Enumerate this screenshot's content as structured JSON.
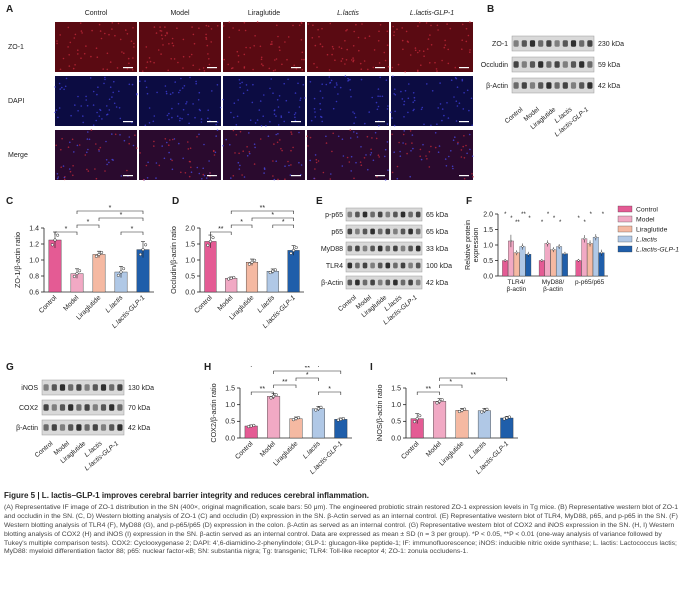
{
  "panels": {
    "A": "A",
    "B": "B",
    "C": "C",
    "D": "D",
    "E": "E",
    "F": "F",
    "G": "G",
    "H": "H",
    "I": "I"
  },
  "colors": {
    "control": "#e45b94",
    "model": "#f1a9c4",
    "liraglutide": "#f5b9a2",
    "lactis": "#b0c8e6",
    "lactis_glp1": "#1f5eaa",
    "if_red": "#5a0a12",
    "if_blue": "#0c0c42"
  },
  "groups": [
    "Control",
    "Model",
    "Liraglutide",
    "L.lactis",
    "L.lactis-GLP-1"
  ],
  "panel_a": {
    "columns": [
      "Control",
      "Model",
      "Liraglutide",
      "L.lactis",
      "L.lactis-GLP-1"
    ],
    "rows": [
      "ZO-1",
      "DAPI",
      "Merge"
    ]
  },
  "blot_b": {
    "bands": [
      {
        "name": "ZO-1",
        "kda": "230 kDa"
      },
      {
        "name": "Occludin",
        "kda": "59 kDa"
      },
      {
        "name": "β-Actin",
        "kda": "42 kDa"
      }
    ]
  },
  "blot_e": {
    "bands": [
      {
        "name": "p-p65",
        "kda": "65 kDa"
      },
      {
        "name": "p65",
        "kda": "65 kDa"
      },
      {
        "name": "MyD88",
        "kda": "33 kDa"
      },
      {
        "name": "TLR4",
        "kda": "100 kDa"
      },
      {
        "name": "β-Actin",
        "kda": "42 kDa"
      }
    ]
  },
  "blot_g": {
    "bands": [
      {
        "name": "iNOS",
        "kda": "130 kDa"
      },
      {
        "name": "COX2",
        "kda": "70 kDa"
      },
      {
        "name": "β-Actin",
        "kda": "42 kDa"
      }
    ]
  },
  "chart_data": [
    {
      "id": "C",
      "type": "bar",
      "ylabel": "ZO-1/β-actin ratio",
      "ylim": [
        0.6,
        1.4
      ],
      "yticks": [
        "0.6",
        "0.8",
        "1.0",
        "1.2",
        "1.4"
      ],
      "categories": [
        "Control",
        "Model",
        "Liraglutide",
        "L.lactis",
        "L.lactis-GLP-1"
      ],
      "values": [
        1.25,
        0.83,
        1.07,
        0.85,
        1.13
      ],
      "errors": [
        0.1,
        0.06,
        0.04,
        0.07,
        0.1
      ],
      "sig": [
        {
          "from": 0,
          "to": 1,
          "label": "*",
          "level": 0
        },
        {
          "from": 1,
          "to": 2,
          "label": "*",
          "level": 1
        },
        {
          "from": 2,
          "to": 4,
          "label": "*",
          "level": 2
        },
        {
          "from": 1,
          "to": 4,
          "label": "*",
          "level": 3
        },
        {
          "from": 3,
          "to": 4,
          "label": "*",
          "level": 0
        }
      ]
    },
    {
      "id": "D",
      "type": "bar",
      "ylabel": "Occludin/β-actin ratio",
      "ylim": [
        0,
        2.0
      ],
      "yticks": [
        "0.0",
        "0.5",
        "1.0",
        "1.5",
        "2.0"
      ],
      "categories": [
        "Control",
        "Model",
        "Liraglutide",
        "L.lactis",
        "L.lactis-GLP-1"
      ],
      "values": [
        1.58,
        0.43,
        0.93,
        0.65,
        1.3
      ],
      "errors": [
        0.2,
        0.04,
        0.1,
        0.07,
        0.15
      ],
      "sig": [
        {
          "from": 0,
          "to": 1,
          "label": "**",
          "level": 0
        },
        {
          "from": 1,
          "to": 2,
          "label": "*",
          "level": 1
        },
        {
          "from": 2,
          "to": 4,
          "label": "*",
          "level": 2
        },
        {
          "from": 3,
          "to": 4,
          "label": "*",
          "level": 1
        },
        {
          "from": 1,
          "to": 4,
          "label": "**",
          "level": 3
        }
      ]
    },
    {
      "id": "F",
      "type": "bar",
      "ylabel": "Relative protein expression",
      "ylim": [
        0,
        2.0
      ],
      "yticks": [
        "0.0",
        "0.5",
        "1.0",
        "1.5",
        "2.0"
      ],
      "groups": [
        "TLR4/ β-actin",
        "MyD88/ β-actin",
        "p-p65/p65"
      ],
      "series": [
        {
          "name": "Control",
          "values": [
            0.5,
            0.5,
            0.5
          ]
        },
        {
          "name": "Model",
          "values": [
            1.13,
            1.05,
            1.2
          ]
        },
        {
          "name": "Liraglutide",
          "values": [
            0.75,
            0.85,
            1.05
          ]
        },
        {
          "name": "L.lactis",
          "values": [
            0.95,
            0.95,
            1.25
          ]
        },
        {
          "name": "L.lactis-GLP-1",
          "values": [
            0.7,
            0.72,
            0.75
          ]
        }
      ],
      "errors": [
        [
          0.05,
          0.05,
          0.05
        ],
        [
          0.2,
          0.1,
          0.12
        ],
        [
          0.08,
          0.08,
          0.1
        ],
        [
          0.1,
          0.08,
          0.1
        ],
        [
          0.08,
          0.06,
          0.1
        ]
      ],
      "sig_labels": [
        "*",
        "*",
        "**",
        "**",
        "*",
        "*",
        "*",
        "*",
        "*",
        "*",
        "*",
        "*",
        "*"
      ],
      "legend": [
        "Control",
        "Model",
        "Liraglutide",
        "L.lactis",
        "L.lactis-GLP-1"
      ]
    },
    {
      "id": "H",
      "type": "bar",
      "ylabel": "COX2/β-actin ratio",
      "ylim": [
        0,
        1.5
      ],
      "yticks": [
        "0.0",
        "0.5",
        "1.0",
        "1.5"
      ],
      "categories": [
        "Control",
        "Model",
        "Liraglutide",
        "L.lactis",
        "L.lactis-GLP-1"
      ],
      "values": [
        0.36,
        1.25,
        0.58,
        0.88,
        0.56
      ],
      "errors": [
        0.03,
        0.08,
        0.05,
        0.07,
        0.04
      ],
      "sig": [
        {
          "from": 0,
          "to": 1,
          "label": "**",
          "level": 0
        },
        {
          "from": 1,
          "to": 2,
          "label": "**",
          "level": 1
        },
        {
          "from": 3,
          "to": 4,
          "label": "*",
          "level": 0
        },
        {
          "from": 2,
          "to": 3,
          "label": "*",
          "level": 2
        },
        {
          "from": 1,
          "to": 4,
          "label": "**",
          "level": 3
        },
        {
          "from": 0,
          "to": 3,
          "label": "**",
          "level": 4
        }
      ]
    },
    {
      "id": "I",
      "type": "bar",
      "ylabel": "iNOS/β-actin ratio",
      "ylim": [
        0,
        1.5
      ],
      "yticks": [
        "0.0",
        "0.5",
        "1.0",
        "1.5"
      ],
      "categories": [
        "Control",
        "Model",
        "Liraglutide",
        "L.lactis",
        "L.lactis-GLP-1"
      ],
      "values": [
        0.58,
        1.1,
        0.83,
        0.82,
        0.6
      ],
      "errors": [
        0.15,
        0.08,
        0.06,
        0.07,
        0.05
      ],
      "sig": [
        {
          "from": 0,
          "to": 1,
          "label": "**",
          "level": 0
        },
        {
          "from": 1,
          "to": 2,
          "label": "*",
          "level": 1
        },
        {
          "from": 1,
          "to": 4,
          "label": "**",
          "level": 2
        }
      ]
    }
  ],
  "caption": {
    "title": "Figure 5 | L. lactis–GLP-1 improves cerebral barrier integrity and reduces cerebral inflammation.",
    "text": "(A) Representative IF image of ZO-1 distribution in the SN (400×, original magnification, scale bars: 50 μm). The engineered probiotic strain restored ZO-1 expression levels in Tg mice. (B) Representative western blot of ZO-1 and occludin in the SN. (C, D) Western blotting analysis of ZO-1 (C) and occludin (D) expression in the SN. β-Actin served as an internal control. (E) Representative western blot of TLR4, MyD88, p65, and p-p65 in the SN. (F) Western blotting analysis of TLR4 (F), MyD88 (G), and p-p65/p65 (D) expression in the colon. β-Actin as served as an internal control. (G) Representative western blot of COX2 and iNOS expression in the SN. (H, I) Western blotting analysis of COX2 (H) and iNOS (I) expression in the SN. β-actin served as an internal control. Data are expressed as mean ± SD (n = 3 per group). *P < 0.05, **P < 0.01 (one-way analysis of variance followed by Tukey's multiple comparison tests). COX2: Cyclooxygenase 2; DAPI: 4',6-diamidino-2-phenylindole; GLP-1: glucagon-like peptide-1; IF: immunofluorescence; iNOS: inducible nitric oxide synthase; L. lactis: Lactococcus lactis; MyD88: myeloid differentiation factor 88; p65: nuclear factor-κB; SN: substantia nigra; Tg: transgenic; TLR4: Toll-like receptor 4; ZO-1: zonula occludens-1."
  }
}
